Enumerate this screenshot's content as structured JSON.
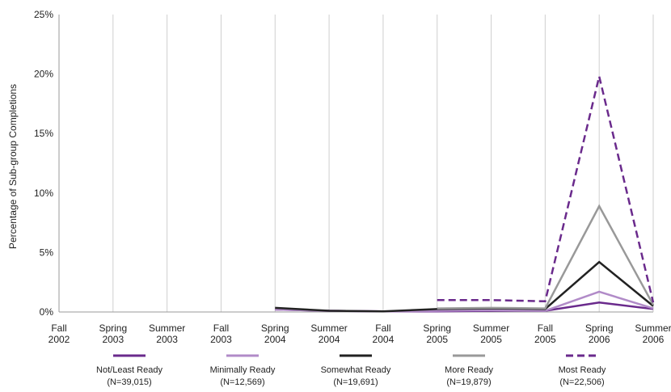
{
  "chart_data": {
    "type": "line",
    "title": "",
    "xlabel": "",
    "ylabel": "Percentage of Sub-group Completions",
    "ylim": [
      0,
      25
    ],
    "yticks": [
      "0%",
      "5%",
      "10%",
      "15%",
      "20%",
      "25%"
    ],
    "ytick_values": [
      0,
      5,
      10,
      15,
      20,
      25
    ],
    "grid": "vertical",
    "legend_position": "bottom",
    "categories": [
      [
        "Fall",
        "2002"
      ],
      [
        "Spring",
        "2003"
      ],
      [
        "Summer",
        "2003"
      ],
      [
        "Fall",
        "2003"
      ],
      [
        "Spring",
        "2004"
      ],
      [
        "Summer",
        "2004"
      ],
      [
        "Fall",
        "2004"
      ],
      [
        "Spring",
        "2005"
      ],
      [
        "Summer",
        "2005"
      ],
      [
        "Fall",
        "2005"
      ],
      [
        "Spring",
        "2006"
      ],
      [
        "Summer",
        "2006"
      ]
    ],
    "series": [
      {
        "name": "Not/Least Ready",
        "n": "(N=39,015)",
        "color": "#6a2a8c",
        "dashed": false,
        "values": [
          null,
          null,
          null,
          null,
          0.2,
          0.1,
          0.05,
          0.05,
          0.1,
          0.1,
          0.8,
          0.25
        ]
      },
      {
        "name": "Minimally Ready",
        "n": "(N=12,569)",
        "color": "#b18bc8",
        "dashed": false,
        "values": [
          null,
          null,
          null,
          null,
          0.2,
          0.1,
          0.05,
          0.1,
          0.15,
          0.1,
          1.7,
          0.3
        ]
      },
      {
        "name": "Somewhat Ready",
        "n": "(N=19,691)",
        "color": "#222222",
        "dashed": false,
        "values": [
          null,
          null,
          null,
          null,
          0.35,
          0.1,
          0.05,
          0.25,
          0.3,
          0.25,
          4.2,
          0.5
        ]
      },
      {
        "name": "More Ready",
        "n": "(N=19,879)",
        "color": "#999999",
        "dashed": false,
        "values": [
          null,
          null,
          null,
          null,
          null,
          null,
          null,
          0.3,
          0.35,
          0.3,
          8.9,
          0.6
        ]
      },
      {
        "name": "Most Ready",
        "n": "(N=22,506)",
        "color": "#6a2a8c",
        "dashed": true,
        "values": [
          null,
          null,
          null,
          null,
          null,
          null,
          null,
          1.0,
          1.0,
          0.9,
          19.8,
          0.8
        ]
      }
    ]
  }
}
